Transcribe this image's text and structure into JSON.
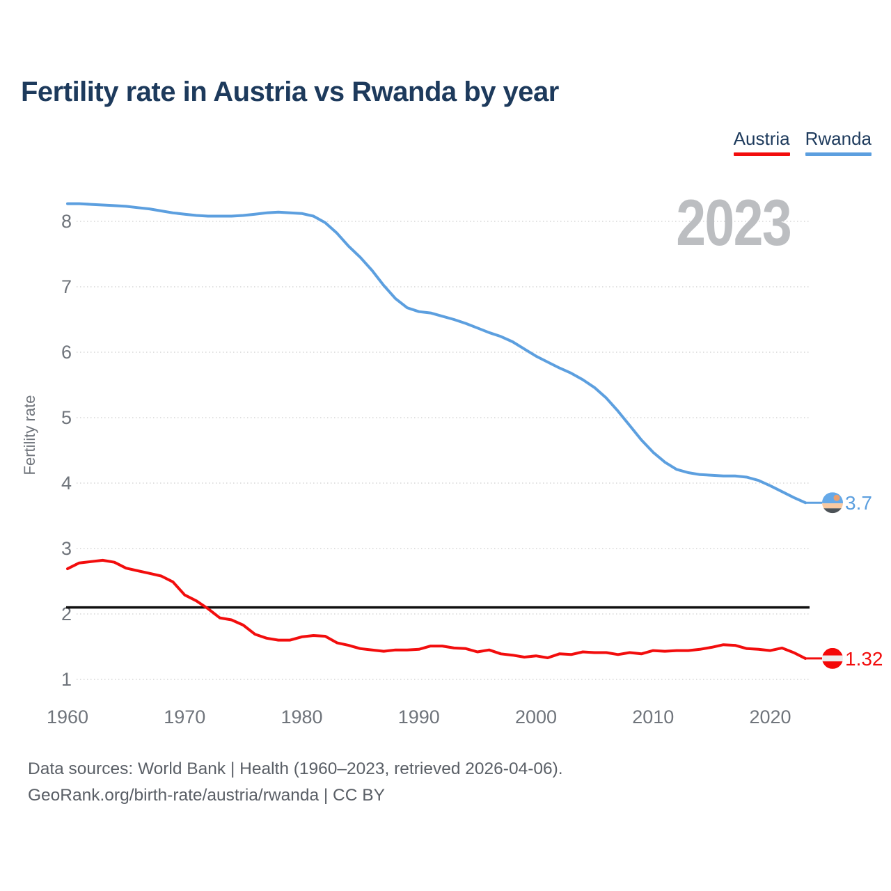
{
  "chart_data": {
    "type": "line",
    "title": "Fertility rate in Austria vs Rwanda by year",
    "ylabel": "Fertility rate",
    "xlabel": "",
    "watermark_year": "2023",
    "xlim": [
      1960,
      2023
    ],
    "ylim": [
      1,
      8
    ],
    "x_ticks": [
      1960,
      1970,
      1980,
      1990,
      2000,
      2010,
      2020
    ],
    "y_ticks": [
      1,
      2,
      3,
      4,
      5,
      6,
      7,
      8
    ],
    "grid": "horizontal-dotted",
    "legend_position": "top-right",
    "reference_line": {
      "value": 2.1,
      "color": "#111111"
    },
    "years": [
      1960,
      1961,
      1962,
      1963,
      1964,
      1965,
      1966,
      1967,
      1968,
      1969,
      1970,
      1971,
      1972,
      1973,
      1974,
      1975,
      1976,
      1977,
      1978,
      1979,
      1980,
      1981,
      1982,
      1983,
      1984,
      1985,
      1986,
      1987,
      1988,
      1989,
      1990,
      1991,
      1992,
      1993,
      1994,
      1995,
      1996,
      1997,
      1998,
      1999,
      2000,
      2001,
      2002,
      2003,
      2004,
      2005,
      2006,
      2007,
      2008,
      2009,
      2010,
      2011,
      2012,
      2013,
      2014,
      2015,
      2016,
      2017,
      2018,
      2019,
      2020,
      2021,
      2022,
      2023
    ],
    "series": [
      {
        "name": "Austria",
        "color": "#F20D0D",
        "end_label": "1.32",
        "flag": "austria",
        "values": [
          2.69,
          2.78,
          2.8,
          2.82,
          2.79,
          2.7,
          2.66,
          2.62,
          2.58,
          2.49,
          2.29,
          2.2,
          2.08,
          1.94,
          1.91,
          1.83,
          1.69,
          1.63,
          1.6,
          1.6,
          1.65,
          1.67,
          1.66,
          1.56,
          1.52,
          1.47,
          1.45,
          1.43,
          1.45,
          1.45,
          1.46,
          1.51,
          1.51,
          1.48,
          1.47,
          1.42,
          1.45,
          1.39,
          1.37,
          1.34,
          1.36,
          1.33,
          1.39,
          1.38,
          1.42,
          1.41,
          1.41,
          1.38,
          1.41,
          1.39,
          1.44,
          1.43,
          1.44,
          1.44,
          1.46,
          1.49,
          1.53,
          1.52,
          1.47,
          1.46,
          1.44,
          1.48,
          1.41,
          1.32
        ]
      },
      {
        "name": "Rwanda",
        "color": "#5C9FDF",
        "end_label": "3.7",
        "flag": "rwanda",
        "values": [
          8.27,
          8.27,
          8.26,
          8.25,
          8.24,
          8.23,
          8.21,
          8.19,
          8.16,
          8.13,
          8.11,
          8.09,
          8.08,
          8.08,
          8.08,
          8.09,
          8.11,
          8.13,
          8.14,
          8.13,
          8.12,
          8.08,
          7.98,
          7.82,
          7.62,
          7.45,
          7.25,
          7.02,
          6.82,
          6.68,
          6.62,
          6.6,
          6.55,
          6.5,
          6.44,
          6.37,
          6.3,
          6.24,
          6.16,
          6.05,
          5.94,
          5.85,
          5.76,
          5.68,
          5.58,
          5.46,
          5.3,
          5.1,
          4.88,
          4.66,
          4.47,
          4.32,
          4.21,
          4.16,
          4.13,
          4.12,
          4.11,
          4.11,
          4.09,
          4.04,
          3.96,
          3.87,
          3.78,
          3.7
        ]
      }
    ]
  },
  "colors": {
    "title": "#1D3A5C",
    "axis_text": "#6F747B",
    "grid": "#E0E0E0",
    "watermark": "#BCBEC1",
    "footer_text": "#5A5F66",
    "reference_line": "#111111",
    "flag_austria": {
      "red": "#F40808",
      "white": "#EDEDED"
    },
    "flag_rwanda": {
      "blue": "#66A9E8",
      "yellow": "#F9C9A1",
      "sun": "#EC9F6E",
      "green": "#4C5257"
    }
  },
  "footer": {
    "line1": "Data sources: World Bank | Health (1960–2023, retrieved 2026-04-06).",
    "line2": "GeoRank.org/birth-rate/austria/rwanda | CC BY"
  }
}
